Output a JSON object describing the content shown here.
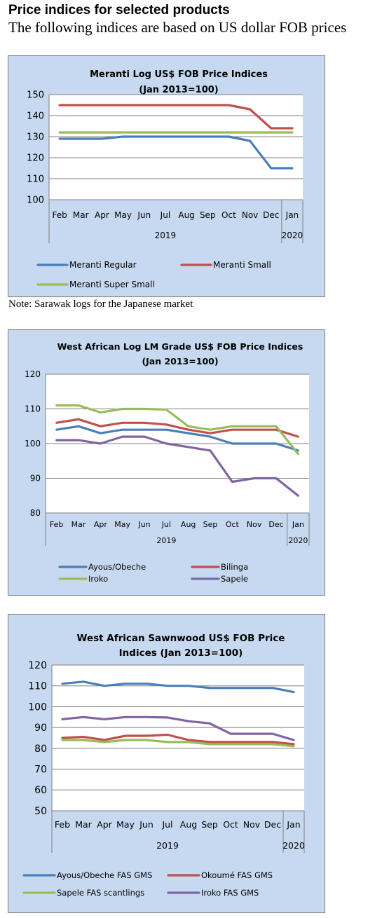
{
  "heading": "Price indices for selected products",
  "subheading": "The following indices are based on US dollar FOB prices",
  "note": "Note: Sarawak logs for the Japanese market",
  "colors": {
    "panel_bg": "#c6d9f1",
    "plot_bg": "#ffffff",
    "blue": "#4a7ebb",
    "red": "#c0504d",
    "green": "#9bbb59",
    "purple": "#8064a2"
  },
  "chart_data": [
    {
      "type": "line",
      "title_lines": [
        "Meranti Log US$ FOB Price Indices",
        "(Jan 2013=100)"
      ],
      "categories": [
        "Feb",
        "Mar",
        "Apr",
        "May",
        "Jun",
        "Jul",
        "Aug",
        "Sep",
        "Oct",
        "Nov",
        "Dec",
        "Jan"
      ],
      "year_labels": [
        "2019",
        "2020"
      ],
      "ylim": [
        100,
        150
      ],
      "yticks": [
        100,
        110,
        120,
        130,
        140,
        150
      ],
      "grid": true,
      "legend_position": "bottom",
      "series": [
        {
          "name": "Meranti Regular",
          "color": "#4a7ebb",
          "values": [
            129,
            129,
            129,
            130,
            130,
            130,
            130,
            130,
            130,
            128,
            115,
            115
          ]
        },
        {
          "name": "Meranti Small",
          "color": "#c0504d",
          "values": [
            145,
            145,
            145,
            145,
            145,
            145,
            145,
            145,
            145,
            143,
            134,
            134
          ]
        },
        {
          "name": "Meranti Super Small",
          "color": "#9bbb59",
          "values": [
            132,
            132,
            132,
            132,
            132,
            132,
            132,
            132,
            132,
            132,
            132,
            132
          ]
        }
      ]
    },
    {
      "type": "line",
      "title_lines": [
        "West African Log LM Grade US$ FOB Price Indices",
        "(Jan 2013=100)"
      ],
      "categories": [
        "Feb",
        "Mar",
        "Apr",
        "May",
        "Jun",
        "Jul",
        "Aug",
        "Sep",
        "Oct",
        "Nov",
        "Dec",
        "Jan"
      ],
      "year_labels": [
        "2019",
        "2020"
      ],
      "ylim": [
        80,
        120
      ],
      "yticks": [
        80,
        90,
        100,
        110,
        120
      ],
      "grid": true,
      "legend_position": "bottom",
      "series": [
        {
          "name": "Ayous/Obeche",
          "color": "#4a7ebb",
          "values": [
            104,
            105,
            103,
            104,
            104,
            104,
            103,
            102,
            100,
            100,
            100,
            98
          ]
        },
        {
          "name": "Bilinga",
          "color": "#c0504d",
          "values": [
            106,
            107,
            105,
            106,
            106,
            105.5,
            104,
            103,
            104,
            104,
            104,
            102
          ]
        },
        {
          "name": "Iroko",
          "color": "#9bbb59",
          "values": [
            111,
            111,
            109,
            110,
            110,
            109.8,
            105,
            104,
            105,
            105,
            105,
            97
          ]
        },
        {
          "name": "Sapele",
          "color": "#8064a2",
          "values": [
            101,
            101,
            100,
            102,
            102,
            100,
            99,
            98,
            89,
            90,
            90,
            85
          ]
        }
      ]
    },
    {
      "type": "line",
      "title_lines": [
        "West African Sawnwood US$ FOB Price",
        "Indices (Jan 2013=100)"
      ],
      "categories": [
        "Feb",
        "Mar",
        "Apr",
        "May",
        "Jun",
        "Jul",
        "Aug",
        "Sep",
        "Oct",
        "Nov",
        "Dec",
        "Jan"
      ],
      "year_labels": [
        "2019",
        "2020"
      ],
      "ylim": [
        50,
        120
      ],
      "yticks": [
        50,
        60,
        70,
        80,
        90,
        100,
        110,
        120
      ],
      "grid": true,
      "legend_position": "bottom",
      "series": [
        {
          "name": "Ayous/Obeche  FAS GMS",
          "color": "#4a7ebb",
          "values": [
            111,
            112,
            110,
            111,
            111,
            110,
            110,
            109,
            109,
            109,
            109,
            107
          ]
        },
        {
          "name": "Okoumé  FAS GMS",
          "color": "#c0504d",
          "values": [
            85,
            85.5,
            84,
            86,
            86,
            86.5,
            84,
            83,
            83,
            83,
            83,
            82
          ]
        },
        {
          "name": "Sapele FAS scantlings",
          "color": "#9bbb59",
          "values": [
            84,
            84,
            83,
            84,
            84,
            83,
            83,
            82,
            82,
            82,
            82,
            81
          ]
        },
        {
          "name": "Iroko FAS GMS",
          "color": "#8064a2",
          "values": [
            94,
            95,
            94,
            95,
            95,
            94.8,
            93,
            92,
            87,
            87,
            87,
            84
          ]
        }
      ]
    }
  ]
}
